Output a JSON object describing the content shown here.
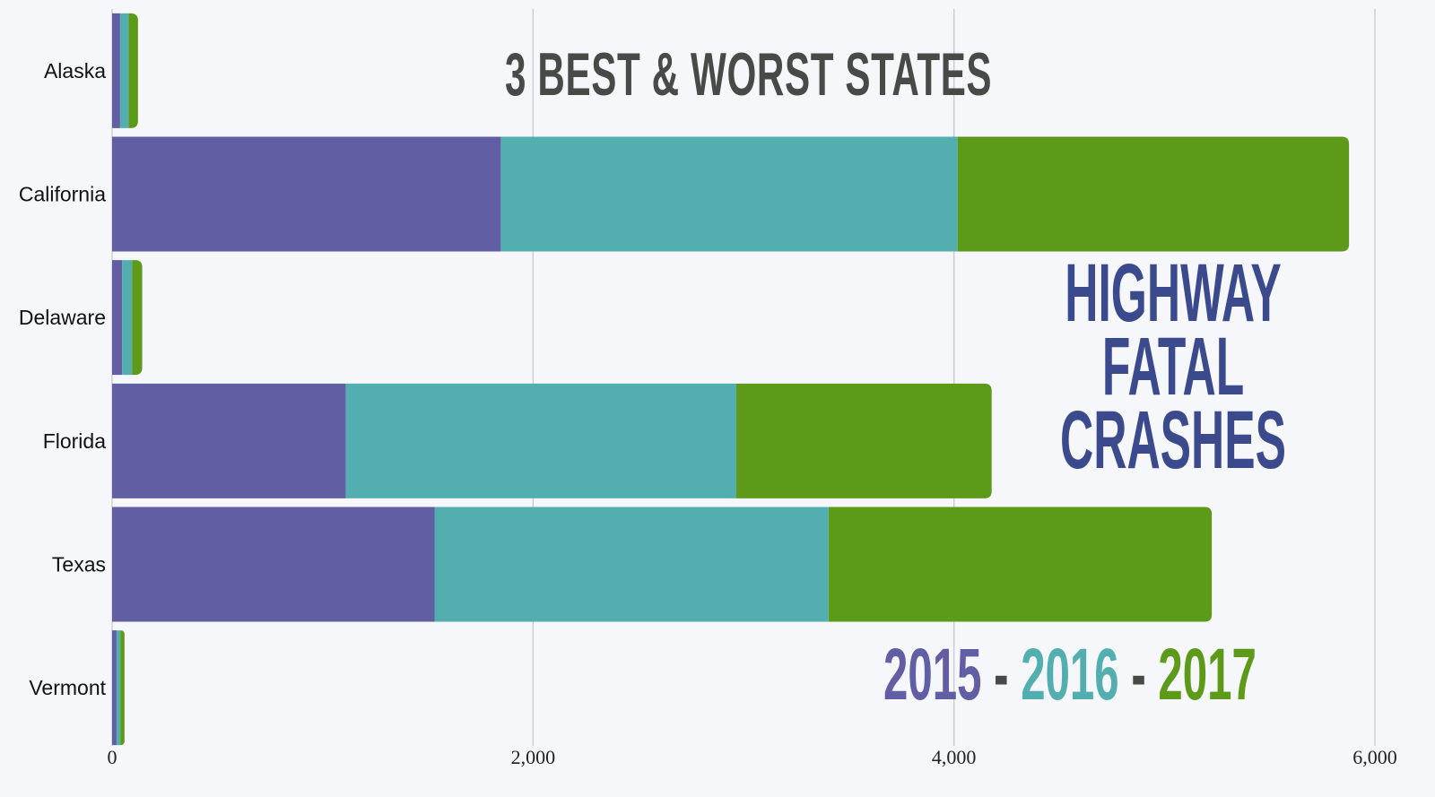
{
  "chart_data": {
    "type": "bar",
    "orientation": "horizontal",
    "stacked": true,
    "title": "3 BEST & WORST STATES",
    "subtitle_lines": [
      "HIGHWAY",
      "FATAL",
      "CRASHES"
    ],
    "legend": {
      "separator": "-",
      "placement": "bottom-right"
    },
    "categories": [
      "Alaska",
      "California",
      "Delaware",
      "Florida",
      "Texas",
      "Vermont"
    ],
    "series": [
      {
        "name": "2015",
        "color": "#625ea3",
        "values": [
          38,
          1847,
          48,
          1111,
          1532,
          21
        ]
      },
      {
        "name": "2016",
        "color": "#53afaf",
        "values": [
          40,
          2170,
          47,
          1855,
          1872,
          18
        ]
      },
      {
        "name": "2017",
        "color": "#5e9a1a",
        "values": [
          45,
          1860,
          48,
          1213,
          1821,
          20
        ]
      }
    ],
    "xlim": [
      0,
      6000
    ],
    "xticks": [
      0,
      2000,
      4000,
      6000
    ],
    "xtick_labels": [
      "0",
      "2,000",
      "4,000",
      "6,000"
    ],
    "grid": true,
    "xlabel": "",
    "ylabel": ""
  }
}
